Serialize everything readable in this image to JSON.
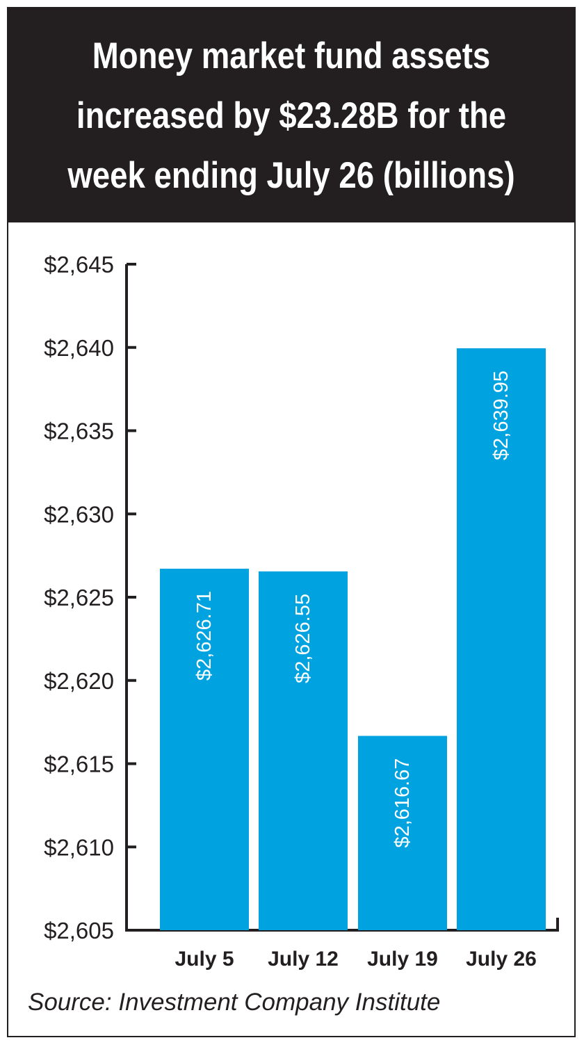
{
  "header": {
    "title_lines": [
      "Money market fund assets",
      "increased by $23.28B for the",
      "week ending July 26 (billions)"
    ]
  },
  "source": "Source: Investment Company Institute",
  "colors": {
    "bar": "#00a3e0",
    "header_bg": "#231f20",
    "text": "#231f20"
  },
  "chart_data": {
    "type": "bar",
    "title": "Money market fund assets increased by $23.28B for the week ending July 26 (billions)",
    "categories": [
      "July 5",
      "July 12",
      "July 19",
      "July 26"
    ],
    "values": [
      2626.71,
      2626.55,
      2616.67,
      2639.95
    ],
    "value_labels": [
      "$2,626.71",
      "$2,626.55",
      "$2,616.67",
      "$2,639.95"
    ],
    "ylim": [
      2605,
      2645
    ],
    "yticks": [
      2645,
      2640,
      2635,
      2630,
      2625,
      2620,
      2615,
      2610,
      2605
    ],
    "ytick_labels": [
      "$2,645",
      "$2,640",
      "$2,635",
      "$2,630",
      "$2,625",
      "$2,620",
      "$2,615",
      "$2,610",
      "$2,605"
    ],
    "grid": false,
    "legend": "none"
  }
}
